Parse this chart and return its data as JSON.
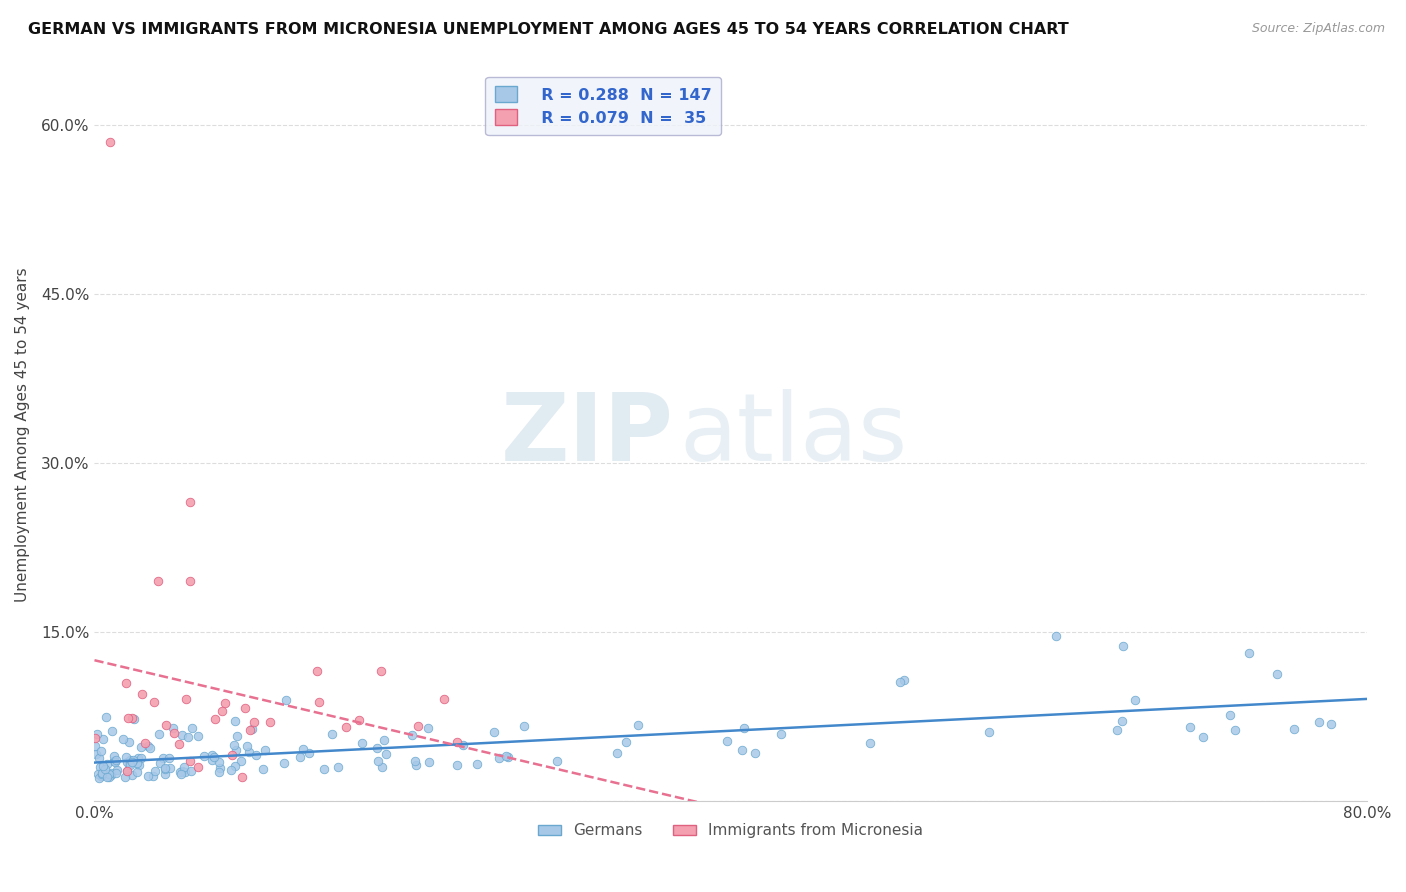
{
  "title": "GERMAN VS IMMIGRANTS FROM MICRONESIA UNEMPLOYMENT AMONG AGES 45 TO 54 YEARS CORRELATION CHART",
  "source": "Source: ZipAtlas.com",
  "ylabel": "Unemployment Among Ages 45 to 54 years",
  "xlim": [
    0.0,
    0.8
  ],
  "ylim": [
    0.0,
    0.65
  ],
  "xticks": [
    0.0,
    0.1,
    0.2,
    0.3,
    0.4,
    0.5,
    0.6,
    0.7,
    0.8
  ],
  "xtick_labels": [
    "0.0%",
    "",
    "",
    "",
    "",
    "",
    "",
    "",
    "80.0%"
  ],
  "yticks": [
    0.0,
    0.15,
    0.3,
    0.45,
    0.6
  ],
  "ytick_labels": [
    "",
    "15.0%",
    "30.0%",
    "45.0%",
    "60.0%"
  ],
  "german_color": "#a8c8e8",
  "german_edge_color": "#6aa8d0",
  "micronesia_color": "#f4a0b0",
  "micronesia_edge_color": "#e06080",
  "german_R": 0.288,
  "german_N": 147,
  "micronesia_R": 0.079,
  "micronesia_N": 35,
  "trend_german_color": "#4488cc",
  "trend_micronesia_color": "#e87090",
  "watermark_zip": "ZIP",
  "watermark_atlas": "atlas",
  "legend_box_color": "#eef3fa",
  "legend_border_color": "#aaaacc"
}
